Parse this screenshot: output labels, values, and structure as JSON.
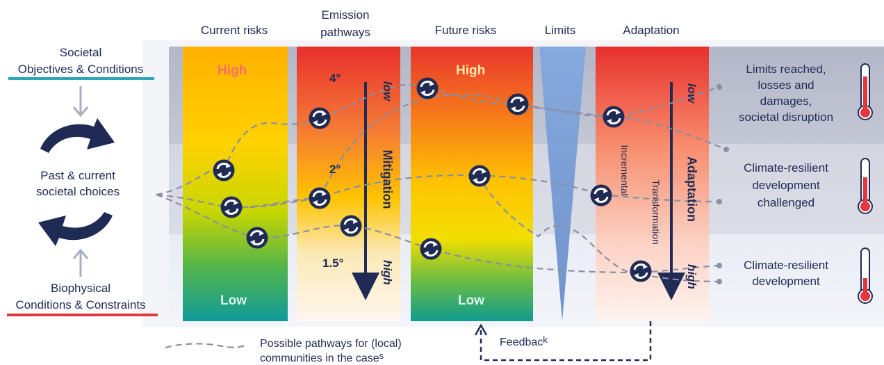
{
  "headers": {
    "current_risks": "Current risks",
    "emission_pathways_l1": "Emission",
    "emission_pathways_l2": "pathways",
    "future_risks": "Future risks",
    "limits": "Limits",
    "adaptation": "Adaptation"
  },
  "left": {
    "societal_l1": "Societal",
    "societal_l2": "Objectives & Conditions",
    "choices_l1": "Past & current",
    "choices_l2": "societal choices",
    "bio_l1": "Biophysical",
    "bio_l2": "Conditions & Constraints"
  },
  "current_risks": {
    "high": "High",
    "low": "Low"
  },
  "emissions": {
    "t4": "4°",
    "t2": "2°",
    "t15": "1.5°",
    "low": "low",
    "mitigation": "Mitigation",
    "high": "high"
  },
  "future_risks": {
    "high": "High",
    "low": "Low"
  },
  "adaptation": {
    "low": "low",
    "adaptation": "Adaptation",
    "high": "high",
    "incremental": "Incremental",
    "transformation": "Transformation"
  },
  "outcomes": {
    "limits_l1": "Limits reached,",
    "limits_l2": "losses and",
    "limits_l3": "damages,",
    "limits_l4": "societal disruption",
    "challenged_l1": "Climate-resilient",
    "challenged_l2": "development",
    "challenged_l3": "challenged",
    "crd_l1": "Climate-resilient",
    "crd_l2": "development"
  },
  "legend": {
    "pathways_l1": "Possible pathways for (local)",
    "pathways_l2": "communities in the case",
    "pathways_l2_tail": "s",
    "feedback": "Feedbac",
    "feedback_tail": "k"
  },
  "colors": {
    "navy": "#1f2a55",
    "teal_underline": "#2aa7b8",
    "red_underline": "#e2373f",
    "dash": "#8a8fa3",
    "band_top": "#b9bcca",
    "band_mid": "#d6d8e3",
    "band_bottom": "#e8ecf4",
    "limits_wedge": "#7ea3da"
  }
}
